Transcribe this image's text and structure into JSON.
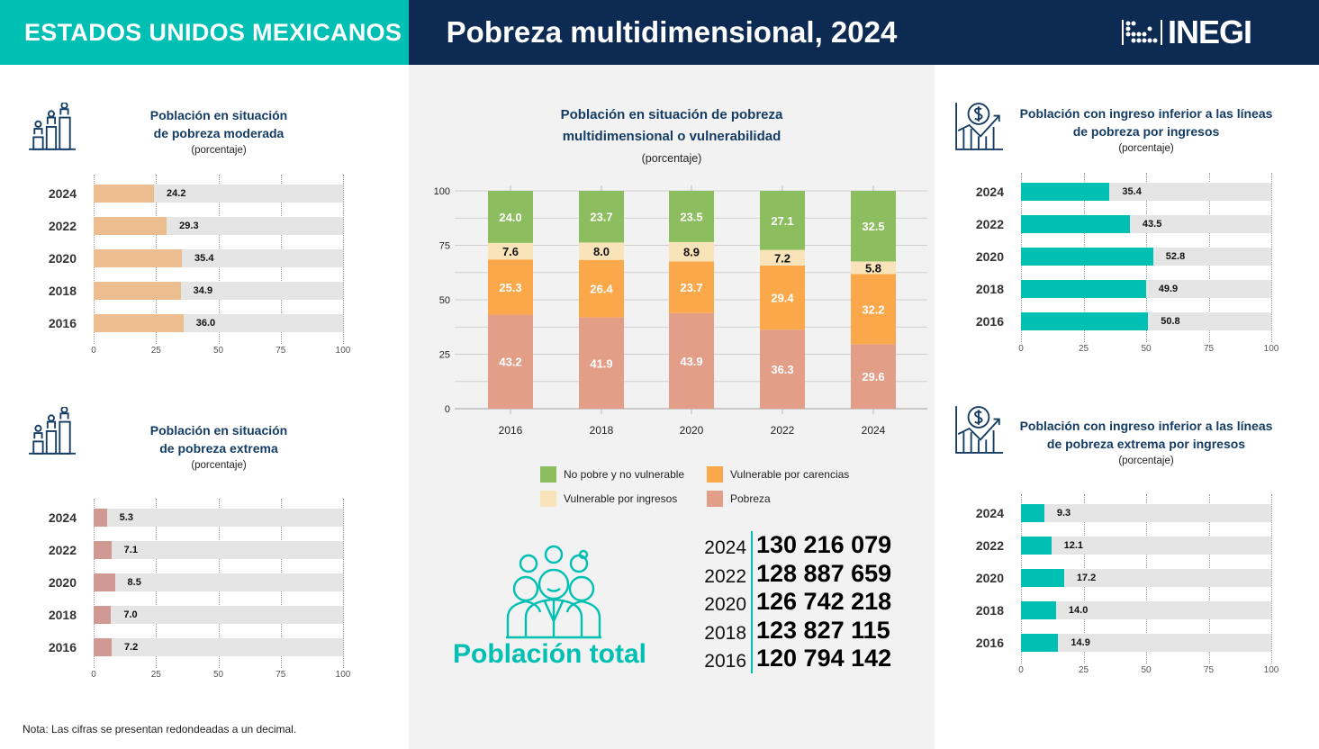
{
  "header": {
    "region": "ESTADOS UNIDOS MEXICANOS",
    "title": "Pobreza multidimensional, 2024",
    "logo_text": "INEGI"
  },
  "colors": {
    "teal": "#00bfb3",
    "navy": "#0d2a52",
    "moderate": "#ecbd8e",
    "extreme": "#d09994",
    "green": "#8cbd5e",
    "cream": "#f8e4b8",
    "orange": "#fba84a",
    "salmon": "#e39e88"
  },
  "chart_data": [
    {
      "type": "bar",
      "orientation": "horizontal",
      "icon": "podium-people-icon",
      "title_line1": "Población en situación",
      "title_line2": "de pobreza moderada",
      "subtitle": "(porcentaje)",
      "categories": [
        "2024",
        "2022",
        "2020",
        "2018",
        "2016"
      ],
      "values": [
        24.2,
        29.3,
        35.4,
        34.9,
        36.0
      ],
      "labels": [
        "24.2",
        "29.3",
        "35.4",
        "34.9",
        "36.0"
      ],
      "xlim": [
        0,
        100
      ],
      "ticks": [
        "0",
        "25",
        "50",
        "75",
        "100"
      ],
      "color": "#ecbd8e"
    },
    {
      "type": "bar",
      "orientation": "horizontal",
      "icon": "podium-people-icon",
      "title_line1": "Población en situación",
      "title_line2": "de pobreza extrema",
      "subtitle": "(porcentaje)",
      "categories": [
        "2024",
        "2022",
        "2020",
        "2018",
        "2016"
      ],
      "values": [
        5.3,
        7.1,
        8.5,
        7.0,
        7.2
      ],
      "labels": [
        "5.3",
        "7.1",
        "8.5",
        "7.0",
        "7.2"
      ],
      "xlim": [
        0,
        100
      ],
      "ticks": [
        "0",
        "25",
        "50",
        "75",
        "100"
      ],
      "color": "#d09994"
    },
    {
      "type": "bar",
      "orientation": "horizontal",
      "icon": "income-chart-icon",
      "title_line1": "Población con ingreso inferior a las líneas",
      "title_line2": "de pobreza por ingresos",
      "subtitle": "(porcentaje)",
      "categories": [
        "2024",
        "2022",
        "2020",
        "2018",
        "2016"
      ],
      "values": [
        35.4,
        43.5,
        52.8,
        49.9,
        50.8
      ],
      "labels": [
        "35.4",
        "43.5",
        "52.8",
        "49.9",
        "50.8"
      ],
      "xlim": [
        0,
        100
      ],
      "ticks": [
        "0",
        "25",
        "50",
        "75",
        "100"
      ],
      "color": "#00bfb3"
    },
    {
      "type": "bar",
      "orientation": "horizontal",
      "icon": "income-chart-icon",
      "title_line1": "Población con ingreso inferior a las líneas",
      "title_line2": "de pobreza extrema por ingresos",
      "subtitle": "(porcentaje)",
      "categories": [
        "2024",
        "2022",
        "2020",
        "2018",
        "2016"
      ],
      "values": [
        9.3,
        12.1,
        17.2,
        14.0,
        14.9
      ],
      "labels": [
        "9.3",
        "12.1",
        "17.2",
        "14.0",
        "14.9"
      ],
      "xlim": [
        0,
        100
      ],
      "ticks": [
        "0",
        "25",
        "50",
        "75",
        "100"
      ],
      "color": "#00bfb3"
    },
    {
      "type": "bar",
      "stacked": true,
      "title_line1": "Población en situación de pobreza",
      "title_line2": "multidimensional o vulnerabilidad",
      "subtitle": "(porcentaje)",
      "categories": [
        "2016",
        "2018",
        "2020",
        "2022",
        "2024"
      ],
      "ylim": [
        0,
        100
      ],
      "yticks": [
        "0",
        "25",
        "50",
        "75",
        "100"
      ],
      "grid": true,
      "legend": "bottom",
      "series": [
        {
          "name": "Pobreza",
          "color": "#e39e88",
          "values": [
            43.2,
            41.9,
            43.9,
            36.3,
            29.6
          ],
          "labels": [
            "43.2",
            "41.9",
            "43.9",
            "36.3",
            "29.6"
          ],
          "label_color": "#ffffff"
        },
        {
          "name": "Vulnerable por carencias",
          "color": "#fba84a",
          "values": [
            25.3,
            26.4,
            23.7,
            29.4,
            32.2
          ],
          "labels": [
            "25.3",
            "26.4",
            "23.7",
            "29.4",
            "32.2"
          ],
          "label_color": "#ffffff"
        },
        {
          "name": "Vulnerable por ingresos",
          "color": "#f8e4b8",
          "values": [
            7.6,
            8.0,
            8.9,
            7.2,
            5.8
          ],
          "labels": [
            "7.6",
            "8.0",
            "8.9",
            "7.2",
            "5.8"
          ],
          "label_color": "#111111"
        },
        {
          "name": "No pobre y no vulnerable",
          "color": "#8cbd5e",
          "values": [
            24.0,
            23.7,
            23.5,
            27.1,
            32.5
          ],
          "labels": [
            "24.0",
            "23.7",
            "23.5",
            "27.1",
            "32.5"
          ],
          "label_color": "#ffffff"
        }
      ]
    }
  ],
  "population": {
    "title": "Población total",
    "icon": "people-group-icon",
    "rows": [
      {
        "year": "2024",
        "value": "130 216 079"
      },
      {
        "year": "2022",
        "value": "128 887 659"
      },
      {
        "year": "2020",
        "value": "126 742 218"
      },
      {
        "year": "2018",
        "value": "123 827 115"
      },
      {
        "year": "2016",
        "value": "120 794 142"
      }
    ]
  },
  "note": "Nota: Las cifras se presentan redondeadas a un decimal."
}
